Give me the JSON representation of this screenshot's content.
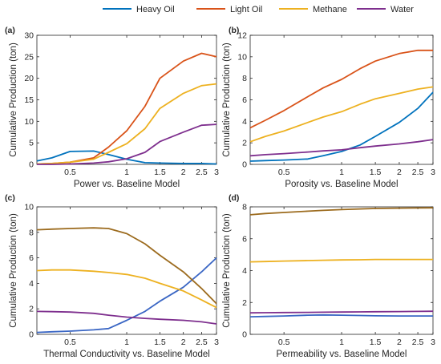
{
  "legend": [
    {
      "name": "Heavy Oil",
      "color": "#0072BD"
    },
    {
      "name": "Light Oil",
      "color": "#D95319"
    },
    {
      "name": "Methane",
      "color": "#EDB120"
    },
    {
      "name": "Water",
      "color": "#7E2F8E"
    }
  ],
  "chart_data": [
    {
      "type": "line",
      "panel_label": "(a)",
      "xlabel": "Power vs. Baseline Model",
      "ylabel": "Cumulative Production (ton)",
      "xscale": "log",
      "xlim": [
        0.333,
        3
      ],
      "ylim": [
        0,
        30
      ],
      "xticks": [
        0.5,
        1,
        1.5,
        2,
        2.5,
        3
      ],
      "xtick_labels": [
        "0.5",
        "1",
        "1.5",
        "2",
        "2.5",
        "3"
      ],
      "yticks": [
        0,
        5,
        10,
        15,
        20,
        25,
        30
      ],
      "ytick_labels": [
        "0",
        "5",
        "10",
        "15",
        "20",
        "25",
        "30"
      ],
      "x": [
        0.333,
        0.4,
        0.5,
        0.667,
        0.8,
        1.0,
        1.25,
        1.5,
        2.0,
        2.5,
        3.0
      ],
      "series": [
        {
          "name": "Heavy Oil",
          "color": "#0072BD",
          "values": [
            0.8,
            1.5,
            3.0,
            3.1,
            2.3,
            1.2,
            0.4,
            0.3,
            0.2,
            0.2,
            0.1
          ]
        },
        {
          "name": "Light Oil",
          "color": "#D95319",
          "values": [
            0.1,
            0.2,
            0.5,
            1.5,
            4.0,
            7.8,
            13.5,
            20.0,
            24.0,
            25.8,
            25.0
          ]
        },
        {
          "name": "Methane",
          "color": "#EDB120",
          "values": [
            0.1,
            0.2,
            0.5,
            1.2,
            2.8,
            4.8,
            8.3,
            13.0,
            16.5,
            18.3,
            18.7
          ]
        },
        {
          "name": "Water",
          "color": "#7E2F8E",
          "values": [
            0.0,
            0.0,
            0.1,
            0.3,
            0.6,
            1.3,
            2.8,
            5.3,
            7.5,
            9.1,
            9.3
          ]
        }
      ]
    },
    {
      "type": "line",
      "panel_label": "(b)",
      "xlabel": "Porosity vs. Baseline Model",
      "ylabel": "Cumulative Production (ton)",
      "xscale": "log",
      "xlim": [
        0.333,
        3
      ],
      "ylim": [
        0,
        12
      ],
      "xticks": [
        0.5,
        1,
        1.5,
        2,
        2.5,
        3
      ],
      "xtick_labels": [
        "0.5",
        "1",
        "1.5",
        "2",
        "2.5",
        "3"
      ],
      "yticks": [
        0,
        2,
        4,
        6,
        8,
        10,
        12
      ],
      "ytick_labels": [
        "0",
        "2",
        "4",
        "6",
        "8",
        "10",
        "12"
      ],
      "x": [
        0.333,
        0.4,
        0.5,
        0.667,
        0.8,
        1.0,
        1.25,
        1.5,
        2.0,
        2.5,
        3.0
      ],
      "series": [
        {
          "name": "Heavy Oil",
          "color": "#0072BD",
          "values": [
            0.3,
            0.35,
            0.4,
            0.5,
            0.8,
            1.2,
            1.8,
            2.6,
            3.9,
            5.2,
            6.7
          ]
        },
        {
          "name": "Light Oil",
          "color": "#D95319",
          "values": [
            3.4,
            4.1,
            5.0,
            6.3,
            7.1,
            7.9,
            8.9,
            9.6,
            10.3,
            10.6,
            10.6
          ]
        },
        {
          "name": "Methane",
          "color": "#EDB120",
          "values": [
            2.1,
            2.6,
            3.1,
            3.9,
            4.4,
            4.9,
            5.6,
            6.1,
            6.6,
            7.0,
            7.2
          ]
        },
        {
          "name": "Water",
          "color": "#7E2F8E",
          "values": [
            0.8,
            0.9,
            1.0,
            1.15,
            1.25,
            1.35,
            1.55,
            1.7,
            1.9,
            2.1,
            2.3
          ]
        }
      ]
    },
    {
      "type": "line",
      "panel_label": "(c)",
      "xlabel": "Thermal Conductivity vs. Baseline Model",
      "ylabel": "Cumulative Production (ton)",
      "xscale": "log",
      "xlim": [
        0.333,
        3
      ],
      "ylim": [
        0,
        10
      ],
      "xticks": [
        0.5,
        1,
        1.5,
        2,
        2.5,
        3
      ],
      "xtick_labels": [
        "0.5",
        "1",
        "1.5",
        "2",
        "2.5",
        "3"
      ],
      "yticks": [
        0,
        2,
        4,
        6,
        8,
        10
      ],
      "ytick_labels": [
        "0",
        "2",
        "4",
        "6",
        "8",
        "10"
      ],
      "x": [
        0.333,
        0.4,
        0.5,
        0.667,
        0.8,
        1.0,
        1.25,
        1.5,
        2.0,
        2.5,
        3.0
      ],
      "series": [
        {
          "name": "Heavy Oil",
          "color": "#3A66C4",
          "values": [
            0.15,
            0.2,
            0.25,
            0.35,
            0.45,
            1.1,
            1.8,
            2.6,
            3.7,
            4.9,
            6.0
          ]
        },
        {
          "name": "Light Oil",
          "color": "#9C6B1E",
          "values": [
            8.2,
            8.25,
            8.3,
            8.35,
            8.3,
            7.9,
            7.1,
            6.2,
            4.9,
            3.6,
            2.4
          ]
        },
        {
          "name": "Methane",
          "color": "#EDB120",
          "values": [
            5.0,
            5.05,
            5.05,
            4.95,
            4.85,
            4.7,
            4.4,
            4.0,
            3.4,
            2.7,
            2.1
          ]
        },
        {
          "name": "Water",
          "color": "#7E2F8E",
          "values": [
            1.8,
            1.78,
            1.75,
            1.65,
            1.5,
            1.35,
            1.25,
            1.18,
            1.1,
            0.98,
            0.82
          ]
        }
      ]
    },
    {
      "type": "line",
      "panel_label": "(d)",
      "xlabel": "Permeability vs. Baseline Model",
      "ylabel": "Cumulative Production (ton)",
      "xscale": "log",
      "xlim": [
        0.333,
        3
      ],
      "ylim": [
        0,
        8
      ],
      "xticks": [
        0.5,
        1,
        1.5,
        2,
        2.5,
        3
      ],
      "xtick_labels": [
        "0.5",
        "1",
        "1.5",
        "2",
        "2.5",
        "3"
      ],
      "yticks": [
        0,
        2,
        4,
        6,
        8
      ],
      "ytick_labels": [
        "0",
        "2",
        "4",
        "6",
        "8"
      ],
      "x": [
        0.333,
        0.4,
        0.5,
        0.667,
        0.8,
        1.0,
        1.25,
        1.5,
        2.0,
        2.5,
        3.0
      ],
      "series": [
        {
          "name": "Heavy Oil",
          "color": "#3A66C4",
          "values": [
            1.1,
            1.12,
            1.15,
            1.2,
            1.22,
            1.2,
            1.18,
            1.16,
            1.15,
            1.15,
            1.15
          ]
        },
        {
          "name": "Light Oil",
          "color": "#9C6B1E",
          "values": [
            7.5,
            7.58,
            7.65,
            7.73,
            7.78,
            7.83,
            7.87,
            7.9,
            7.92,
            7.93,
            7.94
          ]
        },
        {
          "name": "Methane",
          "color": "#EDB120",
          "values": [
            4.55,
            4.57,
            4.6,
            4.63,
            4.65,
            4.67,
            4.68,
            4.7,
            4.7,
            4.7,
            4.7
          ]
        },
        {
          "name": "Water",
          "color": "#7E2F8E",
          "values": [
            1.35,
            1.36,
            1.37,
            1.38,
            1.39,
            1.4,
            1.41,
            1.42,
            1.43,
            1.44,
            1.45
          ]
        }
      ]
    }
  ]
}
